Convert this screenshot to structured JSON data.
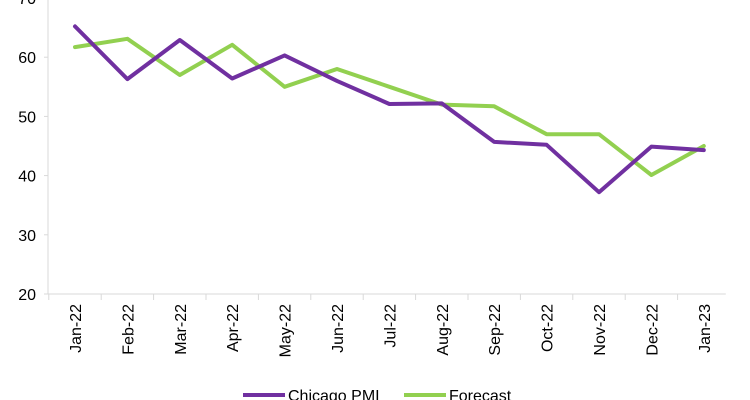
{
  "chart_data": {
    "type": "line",
    "categories": [
      "Jan-22",
      "Feb-22",
      "Mar-22",
      "Apr-22",
      "May-22",
      "Jun-22",
      "Jul-22",
      "Aug-22",
      "Sep-22",
      "Oct-22",
      "Nov-22",
      "Dec-22",
      "Jan-23"
    ],
    "series": [
      {
        "name": "Chicago PMI",
        "color": "#7030A0",
        "values": [
          65.2,
          56.3,
          62.9,
          56.4,
          60.3,
          56.0,
          52.1,
          52.2,
          45.7,
          45.2,
          37.2,
          44.9,
          44.3
        ]
      },
      {
        "name": "Forecast",
        "color": "#92D050",
        "values": [
          61.7,
          63.1,
          57.0,
          62.1,
          55.0,
          58.0,
          55.0,
          52.0,
          51.7,
          47.0,
          47.0,
          40.1,
          45.0
        ]
      }
    ],
    "y_ticks": [
      "20",
      "30",
      "40",
      "50",
      "60",
      "70"
    ],
    "ylim": [
      20,
      70
    ],
    "grid": false,
    "legend_position": "bottom",
    "title": "",
    "xlabel": "",
    "ylabel": ""
  }
}
